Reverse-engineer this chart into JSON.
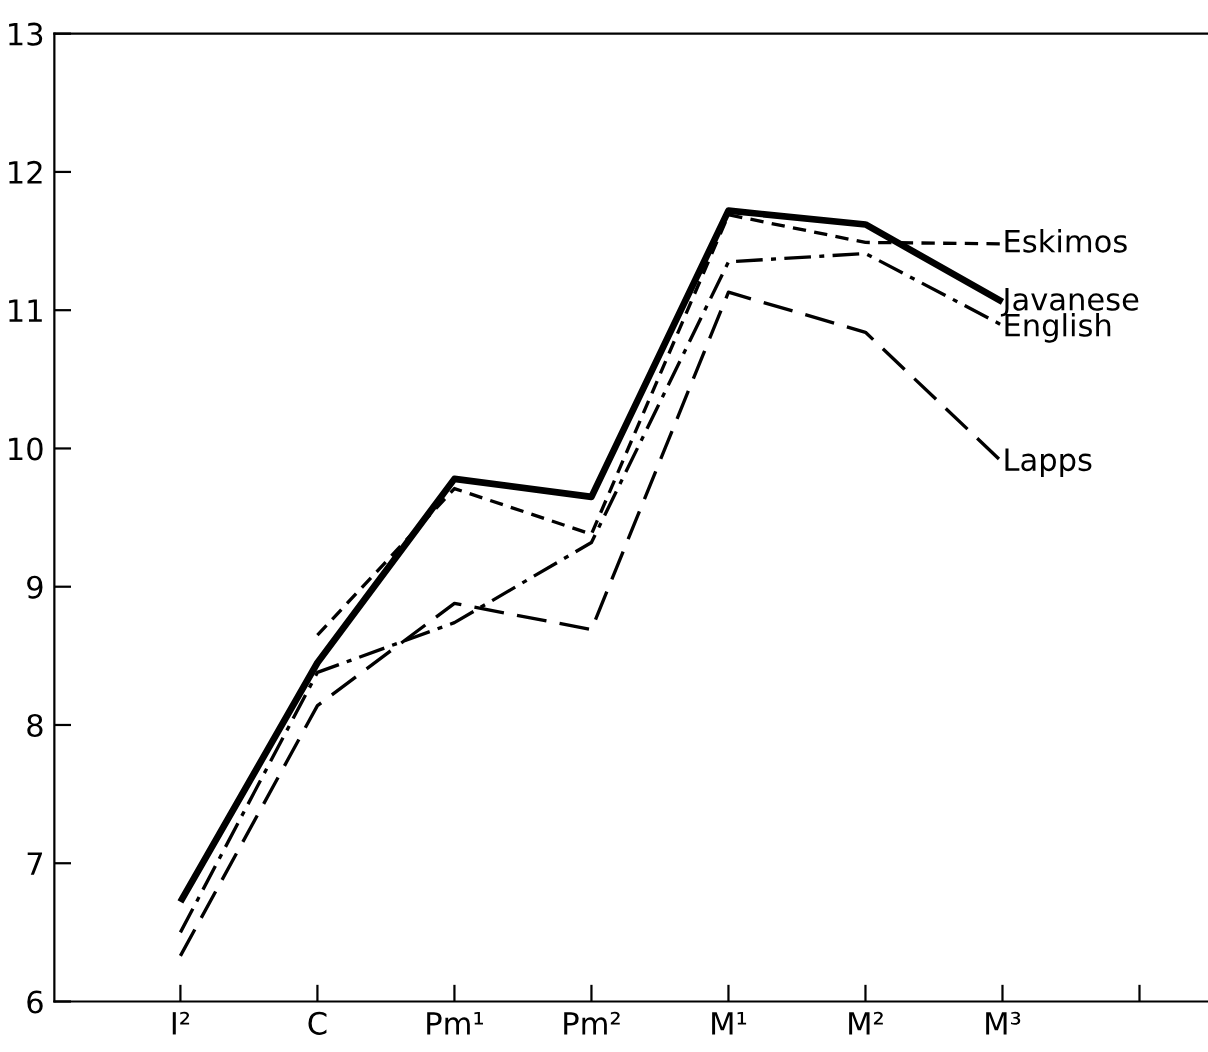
{
  "chart_data": {
    "type": "line",
    "categories": [
      "I²",
      "C",
      "Pm¹",
      "Pm²",
      "M¹",
      "M²",
      "M³",
      null
    ],
    "ylim": [
      6,
      13
    ],
    "yticks": [
      6,
      7,
      8,
      9,
      10,
      11,
      12,
      13
    ],
    "grid": false,
    "legend": false,
    "marker": "none",
    "series": [
      {
        "name": "Eskimos",
        "color": "#000000",
        "line_style": "dashed",
        "values": [
          null,
          8.65,
          9.71,
          9.38,
          11.69,
          11.49,
          11.48,
          null
        ]
      },
      {
        "name": "Javanese",
        "color": "#000000",
        "line_style": "solid",
        "values": [
          6.72,
          8.45,
          9.78,
          9.65,
          11.72,
          11.62,
          11.06,
          null
        ]
      },
      {
        "name": "English",
        "color": "#000000",
        "line_style": "dashdot",
        "values": [
          6.5,
          8.38,
          8.74,
          9.32,
          11.35,
          11.41,
          10.89,
          null
        ]
      },
      {
        "name": "Lapps",
        "color": "#000000",
        "line_style": "longdash",
        "values": [
          6.33,
          8.14,
          8.88,
          8.69,
          11.13,
          10.84,
          9.9,
          null
        ]
      }
    ]
  }
}
